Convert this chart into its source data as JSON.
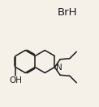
{
  "bg_color": "#f5f0e8",
  "line_color": "#1a1a1a",
  "text_color": "#1a1a1a",
  "title": "BrH",
  "title_fontsize": 9.5,
  "oh_label": "OH",
  "n_label": "N",
  "figsize": [
    1.22,
    1.33
  ],
  "dpi": 100
}
